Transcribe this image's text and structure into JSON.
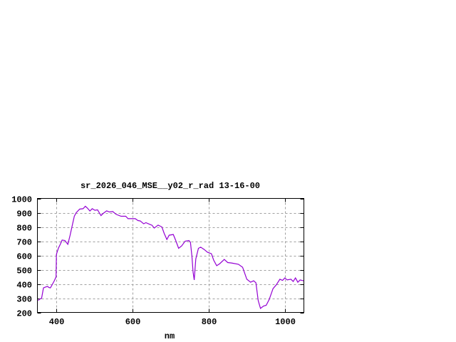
{
  "chart_data": {
    "type": "line",
    "title": "sr_2026_046_MSE__y02_r_rad 13-16-00",
    "xlabel": "nm",
    "ylabel": "",
    "xlim": [
      350,
      1050
    ],
    "ylim": [
      200,
      1000
    ],
    "xticks": [
      400,
      600,
      800,
      1000
    ],
    "yticks": [
      200,
      300,
      400,
      500,
      600,
      700,
      800,
      900,
      1000
    ],
    "grid": true,
    "line_color": "#9400d3",
    "series": [
      {
        "x": [
          352,
          355,
          361,
          366,
          371,
          377,
          380,
          384,
          389,
          395,
          399,
          400,
          405,
          411,
          415,
          422,
          430,
          436,
          442,
          447,
          452,
          461,
          470,
          476,
          481,
          488,
          494,
          501,
          508,
          517,
          523,
          532,
          539,
          548,
          557,
          570,
          582,
          588,
          600,
          607,
          614,
          620,
          629,
          635,
          646,
          651,
          657,
          667,
          677,
          683,
          690,
          696,
          707,
          713,
          721,
          729,
          738,
          748,
          752,
          756,
          759,
          762,
          766,
          773,
          779,
          788,
          797,
          807,
          813,
          821,
          829,
          841,
          850,
          860,
          878,
          889,
          900,
          910,
          918,
          924,
          930,
          936,
          944,
          951,
          959,
          969,
          978,
          987,
          994,
          1000,
          1006,
          1016,
          1022,
          1028,
          1034,
          1040,
          1049
        ],
        "y": [
          283,
          292,
          300,
          372,
          378,
          383,
          375,
          372,
          395,
          425,
          450,
          608,
          650,
          683,
          708,
          705,
          678,
          742,
          817,
          875,
          900,
          925,
          928,
          945,
          933,
          912,
          928,
          917,
          920,
          880,
          895,
          913,
          905,
          908,
          888,
          875,
          875,
          858,
          858,
          858,
          845,
          842,
          822,
          830,
          817,
          812,
          792,
          813,
          800,
          755,
          712,
          742,
          747,
          708,
          650,
          667,
          700,
          705,
          692,
          592,
          483,
          428,
          575,
          650,
          658,
          642,
          622,
          612,
          567,
          528,
          542,
          572,
          550,
          547,
          538,
          517,
          433,
          412,
          422,
          408,
          283,
          228,
          245,
          250,
          292,
          367,
          395,
          433,
          425,
          442,
          428,
          433,
          417,
          442,
          412,
          428,
          422
        ]
      }
    ]
  }
}
